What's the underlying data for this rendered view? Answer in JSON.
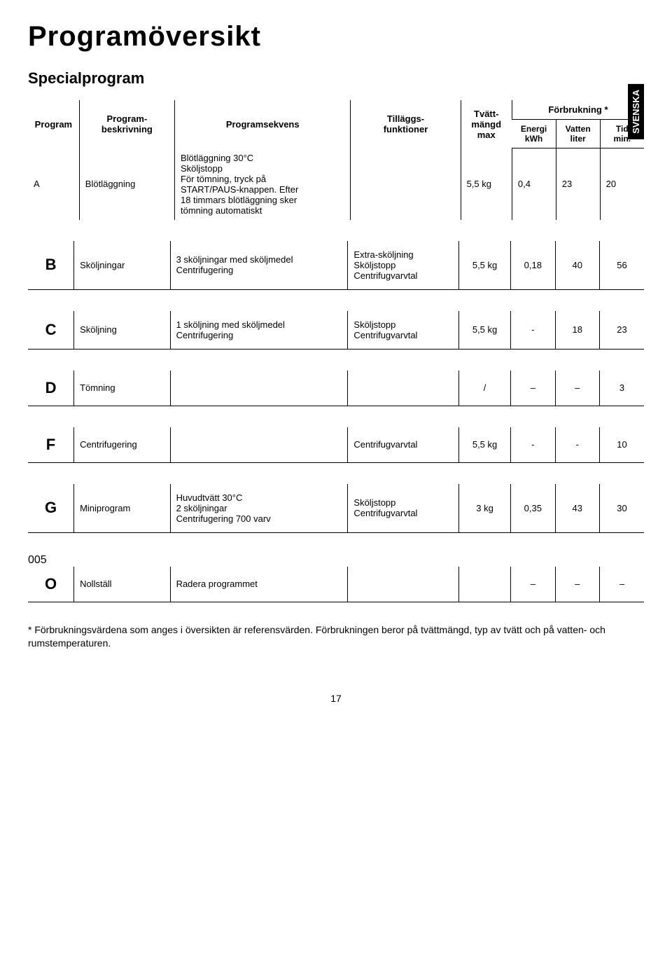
{
  "sideTab": "SVENSKA",
  "title": "Programöversikt",
  "subtitle": "Specialprogram",
  "header": {
    "program": "Program",
    "desc": "Program-\nbeskrivning",
    "seq": "Programsekvens",
    "func": "Tilläggs-\nfunktioner",
    "mass": "Tvätt-\nmängd\nmax",
    "group": "Förbrukning *",
    "energy": "Energi\nkWh",
    "water": "Vatten\nliter",
    "time": "Tid\nmin."
  },
  "rows": [
    {
      "letter": "A",
      "desc": "Blötläggning",
      "seq": "Blötläggning 30°C\nSköljstopp\nFör tömning, tryck på\nSTART/PAUS-knappen. Efter\n18 timmars blötläggning sker\ntömning automatiskt",
      "func": "",
      "mass": "5,5 kg",
      "energy": "0,4",
      "water": "23",
      "time": "20"
    },
    {
      "letter": "B",
      "desc": "Sköljningar",
      "seq": "3 sköljningar med sköljmedel\nCentrifugering",
      "func": "Extra-sköljning\nSköljstopp\nCentrifugvarvtal",
      "mass": "5,5 kg",
      "energy": "0,18",
      "water": "40",
      "time": "56"
    },
    {
      "letter": "C",
      "desc": "Sköljning",
      "seq": "1 sköljning med sköljmedel\nCentrifugering",
      "func": "Sköljstopp\nCentrifugvarvtal",
      "mass": "5,5 kg",
      "energy": "-",
      "water": "18",
      "time": "23"
    },
    {
      "letter": "D",
      "desc": "Tömning",
      "seq": "",
      "func": "",
      "mass": "/",
      "energy": "–",
      "water": "–",
      "time": "3"
    },
    {
      "letter": "F",
      "desc": "Centrifugering",
      "seq": "",
      "func": "Centrifugvarvtal",
      "mass": "5,5 kg",
      "energy": "-",
      "water": "-",
      "time": "10"
    },
    {
      "letter": "G",
      "desc": "Miniprogram",
      "seq": "Huvudtvätt 30°C\n2 sköljningar\nCentrifugering 700 varv",
      "func": "Sköljstopp\nCentrifugvarvtal",
      "mass": "3 kg",
      "energy": "0,35",
      "water": "43",
      "time": "30"
    },
    {
      "letter": "O",
      "desc": "Nollställ",
      "seq": "Radera programmet",
      "func": "",
      "mass": "",
      "energy": "–",
      "water": "–",
      "time": "–"
    }
  ],
  "footnote": "* Förbrukningsvärdena som anges i översikten är referensvärden. Förbrukningen beror på tvättmängd, typ av tvätt och på vatten- och rumstemperaturen.",
  "pageNumber": "17"
}
